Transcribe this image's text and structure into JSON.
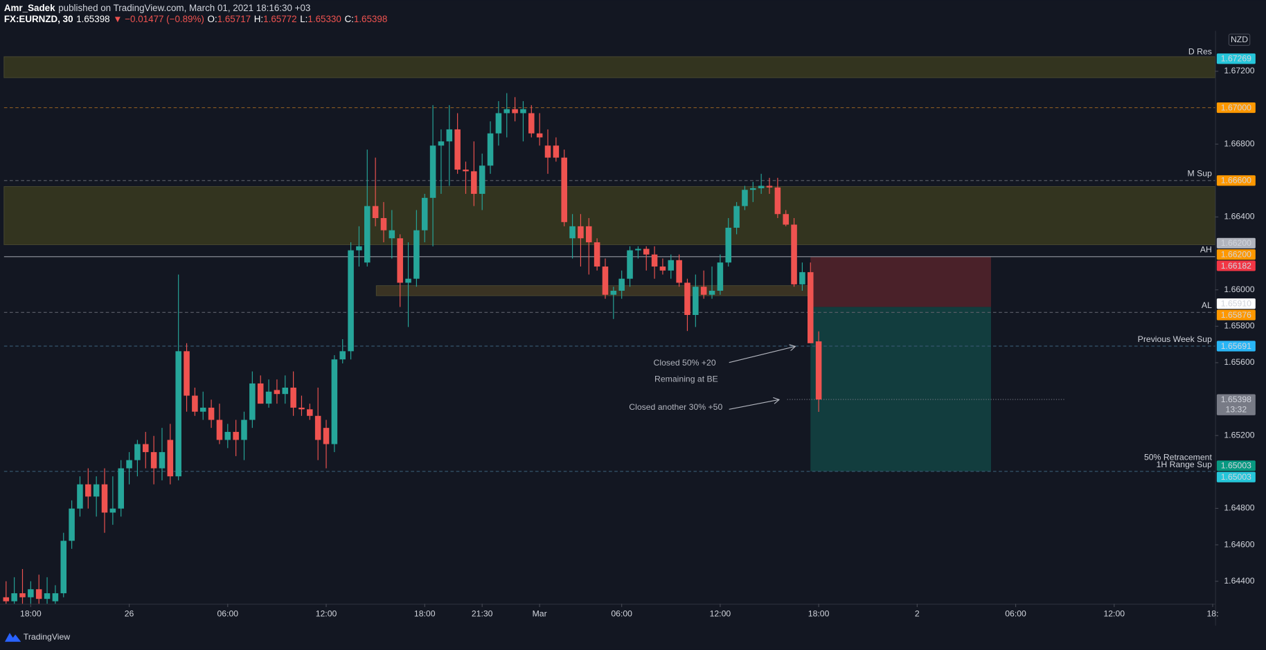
{
  "header": {
    "author": "Amr_Sadek",
    "published": "published on TradingView.com, March 01, 2021 18:16:30 +03",
    "symbol": "FX:EURNZD, 30",
    "last": "1.65398",
    "change": "▼ −0.01477 (−0.89%)",
    "ohlc": [
      {
        "label": "O:",
        "value": "1.65717"
      },
      {
        "label": "H:",
        "value": "1.65772"
      },
      {
        "label": "L:",
        "value": "1.65330"
      },
      {
        "label": "C:",
        "value": "1.65398"
      }
    ]
  },
  "footer": "TradingView",
  "chart_data": {
    "type": "candlestick",
    "currency": "NZD",
    "xlim": [
      -0.25,
      147.3
    ],
    "ylim": [
      1.64276,
      1.67422
    ],
    "xticks": [
      {
        "value": 3,
        "label": "18:00"
      },
      {
        "value": 15,
        "label": "26"
      },
      {
        "value": 27,
        "label": "06:00"
      },
      {
        "value": 39,
        "label": "12:00"
      },
      {
        "value": 51,
        "label": "18:00"
      },
      {
        "value": 58,
        "label": "21:30"
      },
      {
        "value": 65,
        "label": "Mar"
      },
      {
        "value": 75,
        "label": "06:00"
      },
      {
        "value": 87,
        "label": "12:00"
      },
      {
        "value": 99,
        "label": "18:00"
      },
      {
        "value": 111,
        "label": "2"
      },
      {
        "value": 123,
        "label": "06:00"
      },
      {
        "value": 135,
        "label": "12:00"
      },
      {
        "value": 147,
        "label": "18:"
      }
    ],
    "yticks": [
      {
        "value": 1.672,
        "label": "1.67200"
      },
      {
        "value": 1.668,
        "label": "1.66800"
      },
      {
        "value": 1.664,
        "label": "1.66400"
      },
      {
        "value": 1.66,
        "label": "1.66000"
      },
      {
        "value": 1.658,
        "label": "1.65800"
      },
      {
        "value": 1.656,
        "label": "1.65600"
      },
      {
        "value": 1.652,
        "label": "1.65200"
      },
      {
        "value": 1.648,
        "label": "1.64800"
      },
      {
        "value": 1.646,
        "label": "1.64600"
      },
      {
        "value": 1.644,
        "label": "1.64400"
      }
    ],
    "grid": false,
    "series": [
      {
        "up_color": "#26a69a",
        "down_color": "#ef5350",
        "ohlc": [
          [
            1.64312,
            1.644,
            1.64276,
            1.6429
          ],
          [
            1.6429,
            1.64422,
            1.64276,
            1.64334
          ],
          [
            1.64334,
            1.64467,
            1.64276,
            1.64312
          ],
          [
            1.64312,
            1.644,
            1.64276,
            1.64356
          ],
          [
            1.64356,
            1.64436,
            1.64276,
            1.64303
          ],
          [
            1.64303,
            1.64422,
            1.64276,
            1.64334
          ],
          [
            1.6429,
            1.64378,
            1.64276,
            1.64334
          ],
          [
            1.64334,
            1.64666,
            1.64312,
            1.64622
          ],
          [
            1.64622,
            1.64844,
            1.64578,
            1.64799
          ],
          [
            1.64799,
            1.64976,
            1.64755,
            1.64932
          ],
          [
            1.64932,
            1.6502,
            1.64799,
            1.64865
          ],
          [
            1.64865,
            1.64976,
            1.64755,
            1.64932
          ],
          [
            1.64932,
            1.6502,
            1.64666,
            1.64777
          ],
          [
            1.64777,
            1.64976,
            1.6471,
            1.64799
          ],
          [
            1.64799,
            1.65065,
            1.64755,
            1.6502
          ],
          [
            1.6502,
            1.65109,
            1.64932,
            1.65065
          ],
          [
            1.65065,
            1.65176,
            1.64976,
            1.65153
          ],
          [
            1.65153,
            1.6522,
            1.6502,
            1.65109
          ],
          [
            1.65109,
            1.65198,
            1.64932,
            1.6502
          ],
          [
            1.6502,
            1.65242,
            1.64954,
            1.65109
          ],
          [
            1.65176,
            1.65264,
            1.64932,
            1.64976
          ],
          [
            1.64976,
            1.66084,
            1.64954,
            1.65663
          ],
          [
            1.65663,
            1.65707,
            1.65331,
            1.65419
          ],
          [
            1.65419,
            1.65463,
            1.65308,
            1.65331
          ],
          [
            1.65331,
            1.65441,
            1.65286,
            1.65353
          ],
          [
            1.65353,
            1.65397,
            1.65242,
            1.65286
          ],
          [
            1.65286,
            1.65375,
            1.65153,
            1.65176
          ],
          [
            1.65176,
            1.65264,
            1.65131,
            1.6522
          ],
          [
            1.6522,
            1.65286,
            1.65087,
            1.65176
          ],
          [
            1.65176,
            1.65331,
            1.65065,
            1.65286
          ],
          [
            1.65286,
            1.65552,
            1.65242,
            1.65486
          ],
          [
            1.65486,
            1.6553,
            1.65375,
            1.65375
          ],
          [
            1.65375,
            1.65508,
            1.65353,
            1.65441
          ],
          [
            1.6545,
            1.65508,
            1.65375,
            1.65428
          ],
          [
            1.65428,
            1.6553,
            1.65375,
            1.65463
          ],
          [
            1.65463,
            1.65552,
            1.65308,
            1.65353
          ],
          [
            1.65353,
            1.65419,
            1.65308,
            1.65344
          ],
          [
            1.65344,
            1.65375,
            1.65286,
            1.65308
          ],
          [
            1.65308,
            1.65463,
            1.65065,
            1.65176
          ],
          [
            1.65242,
            1.65286,
            1.6502,
            1.65153
          ],
          [
            1.65153,
            1.65641,
            1.65109,
            1.65618
          ],
          [
            1.65618,
            1.65729,
            1.65596,
            1.65663
          ],
          [
            1.65663,
            1.66261,
            1.65618,
            1.66217
          ],
          [
            1.66217,
            1.66349,
            1.66128,
            1.66239
          ],
          [
            1.6615,
            1.6677,
            1.66128,
            1.6646
          ],
          [
            1.6646,
            1.66726,
            1.66349,
            1.66394
          ],
          [
            1.66394,
            1.66482,
            1.66261,
            1.66327
          ],
          [
            1.66283,
            1.66438,
            1.66172,
            1.66327
          ],
          [
            1.66283,
            1.66305,
            1.65906,
            1.66039
          ],
          [
            1.66039,
            1.66261,
            1.65796,
            1.66061
          ],
          [
            1.66061,
            1.66438,
            1.66017,
            1.66327
          ],
          [
            1.66327,
            1.66527,
            1.66261,
            1.66505
          ],
          [
            1.66505,
            1.67014,
            1.66239,
            1.66792
          ],
          [
            1.66792,
            1.66881,
            1.66527,
            1.66815
          ],
          [
            1.66815,
            1.67014,
            1.66571,
            1.66881
          ],
          [
            1.66881,
            1.6697,
            1.66637,
            1.6666
          ],
          [
            1.6666,
            1.66704,
            1.66527,
            1.66651
          ],
          [
            1.66651,
            1.66815,
            1.6646,
            1.66527
          ],
          [
            1.66527,
            1.66748,
            1.66438,
            1.66682
          ],
          [
            1.66682,
            1.66925,
            1.66637,
            1.66859
          ],
          [
            1.66859,
            1.67036,
            1.66792,
            1.6697
          ],
          [
            1.6697,
            1.6708,
            1.66837,
            1.66992
          ],
          [
            1.66992,
            1.67058,
            1.66925,
            1.6697
          ],
          [
            1.6697,
            1.67036,
            1.66815,
            1.66992
          ],
          [
            1.6697,
            1.67014,
            1.66837,
            1.66859
          ],
          [
            1.66859,
            1.6697,
            1.66792,
            1.66837
          ],
          [
            1.66792,
            1.66881,
            1.66637,
            1.66726
          ],
          [
            1.66792,
            1.66837,
            1.66704,
            1.66726
          ],
          [
            1.66726,
            1.6677,
            1.66349,
            1.66372
          ],
          [
            1.66283,
            1.66416,
            1.66172,
            1.66349
          ],
          [
            1.66349,
            1.66416,
            1.66128,
            1.66283
          ],
          [
            1.66349,
            1.66394,
            1.66084,
            1.66261
          ],
          [
            1.66261,
            1.66283,
            1.66106,
            1.66128
          ],
          [
            1.66128,
            1.66172,
            1.65951,
            1.65973
          ],
          [
            1.65973,
            1.66017,
            1.6584,
            1.65995
          ],
          [
            1.65995,
            1.66106,
            1.65951,
            1.66061
          ],
          [
            1.66061,
            1.66239,
            1.66017,
            1.66217
          ],
          [
            1.66217,
            1.66239,
            1.66172,
            1.66225
          ],
          [
            1.66225,
            1.66239,
            1.66106,
            1.66194
          ],
          [
            1.66194,
            1.66239,
            1.66061,
            1.66128
          ],
          [
            1.66128,
            1.66172,
            1.66084,
            1.66106
          ],
          [
            1.66106,
            1.66194,
            1.66061,
            1.66163
          ],
          [
            1.66163,
            1.66194,
            1.66017,
            1.66039
          ],
          [
            1.66039,
            1.66061,
            1.65774,
            1.65862
          ],
          [
            1.65862,
            1.66084,
            1.65796,
            1.66017
          ],
          [
            1.66017,
            1.66106,
            1.65951,
            1.65973
          ],
          [
            1.65973,
            1.66128,
            1.65951,
            1.65995
          ],
          [
            1.65995,
            1.66194,
            1.65973,
            1.6615
          ],
          [
            1.6615,
            1.66394,
            1.66128,
            1.66341
          ],
          [
            1.66341,
            1.66482,
            1.66305,
            1.6646
          ],
          [
            1.6646,
            1.66571,
            1.66438,
            1.66549
          ],
          [
            1.66549,
            1.66593,
            1.66482,
            1.66558
          ],
          [
            1.66558,
            1.66637,
            1.66527,
            1.66571
          ],
          [
            1.66571,
            1.66615,
            1.66527,
            1.66562
          ],
          [
            1.66562,
            1.66615,
            1.66394,
            1.66416
          ],
          [
            1.66416,
            1.66438,
            1.66349,
            1.66358
          ],
          [
            1.66358,
            1.66394,
            1.66017,
            1.6603
          ],
          [
            1.6603,
            1.6615,
            1.65995,
            1.66097
          ],
          [
            1.66097,
            1.6615,
            1.65707,
            1.65707
          ],
          [
            1.65717,
            1.65772,
            1.6533,
            1.65398
          ]
        ]
      }
    ],
    "zones": [
      {
        "from": 1.6728,
        "to": 1.67165,
        "color": "#33341f"
      },
      {
        "from": 1.66567,
        "to": 1.66248,
        "color": "#33341f"
      },
      {
        "from": 1.66023,
        "to": 1.65968,
        "x": [
          45.1,
          103.2
        ],
        "color": "#3a3323"
      }
    ],
    "position": {
      "stop": 1.66181,
      "entry": 1.65906,
      "target": 1.65003,
      "x": [
        98,
        120
      ],
      "stop_color": "#4a2129",
      "target_color": "#123d3e"
    },
    "levels": [
      {
        "name": "D Res",
        "value": 1.67269,
        "label": "1.67269",
        "color": "#26c6da",
        "text_color": "#131722",
        "line_style": "none"
      },
      {
        "value": 1.67,
        "label": "1.67000",
        "color": "#ff9800",
        "text_color": "#131722",
        "line_style": "dashed",
        "line_color": "#8a5a22"
      },
      {
        "name": "M Sup",
        "value": 1.666,
        "label": "1.66600",
        "color": "#ff9800",
        "text_color": "#131722",
        "line_style": "dashed",
        "line_color": "#5d606b"
      },
      {
        "value": 1.662,
        "label": "1.66200",
        "color": "#b2b5be",
        "text_color": "#131722",
        "line_style": "none"
      },
      {
        "value": 1.662,
        "label": "1.66200",
        "color": "#ff9800",
        "text_color": "#131722",
        "line_style": "none"
      },
      {
        "name": "AH",
        "value": 1.66182,
        "label": "1.66182",
        "color": "#f23645",
        "text_color": "#ffffff",
        "line_style": "solid",
        "line_color": "#9598a1"
      },
      {
        "value": 1.6591,
        "label": "1.65910",
        "color": "#ffffff",
        "text_color": "#131722",
        "line_style": "none"
      },
      {
        "name": "AL",
        "value": 1.65876,
        "label": "1.65876",
        "color": "#ff9800",
        "text_color": "#131722",
        "line_style": "dashed",
        "line_color": "#5d606b"
      },
      {
        "name": "Previous Week Sup",
        "value": 1.65691,
        "label": "1.65691",
        "color": "#29b6f6",
        "text_color": "#131722",
        "line_style": "dashed",
        "line_color": "#35566e"
      },
      {
        "value": 1.65398,
        "label": "1.65398",
        "countdown": "13:32",
        "color": "#787b86",
        "text_color": "#ffffff",
        "line_style": "dotted",
        "line_color": "#787b86"
      },
      {
        "name": [
          "50% Retracement",
          "1H Range Sup"
        ],
        "value": 1.65003,
        "label": "1.65003",
        "color": "#089981",
        "text_color": "#ffffff",
        "line_style": "dashed",
        "line_color": "#35566e"
      },
      {
        "value": 1.65003,
        "label": "1.65003",
        "color": "#26c6da",
        "text_color": "#131722",
        "line_style": "none"
      }
    ],
    "annotations": [
      "Closed 50% +20",
      "Remaining at BE",
      "Closed another 30% +50"
    ]
  }
}
